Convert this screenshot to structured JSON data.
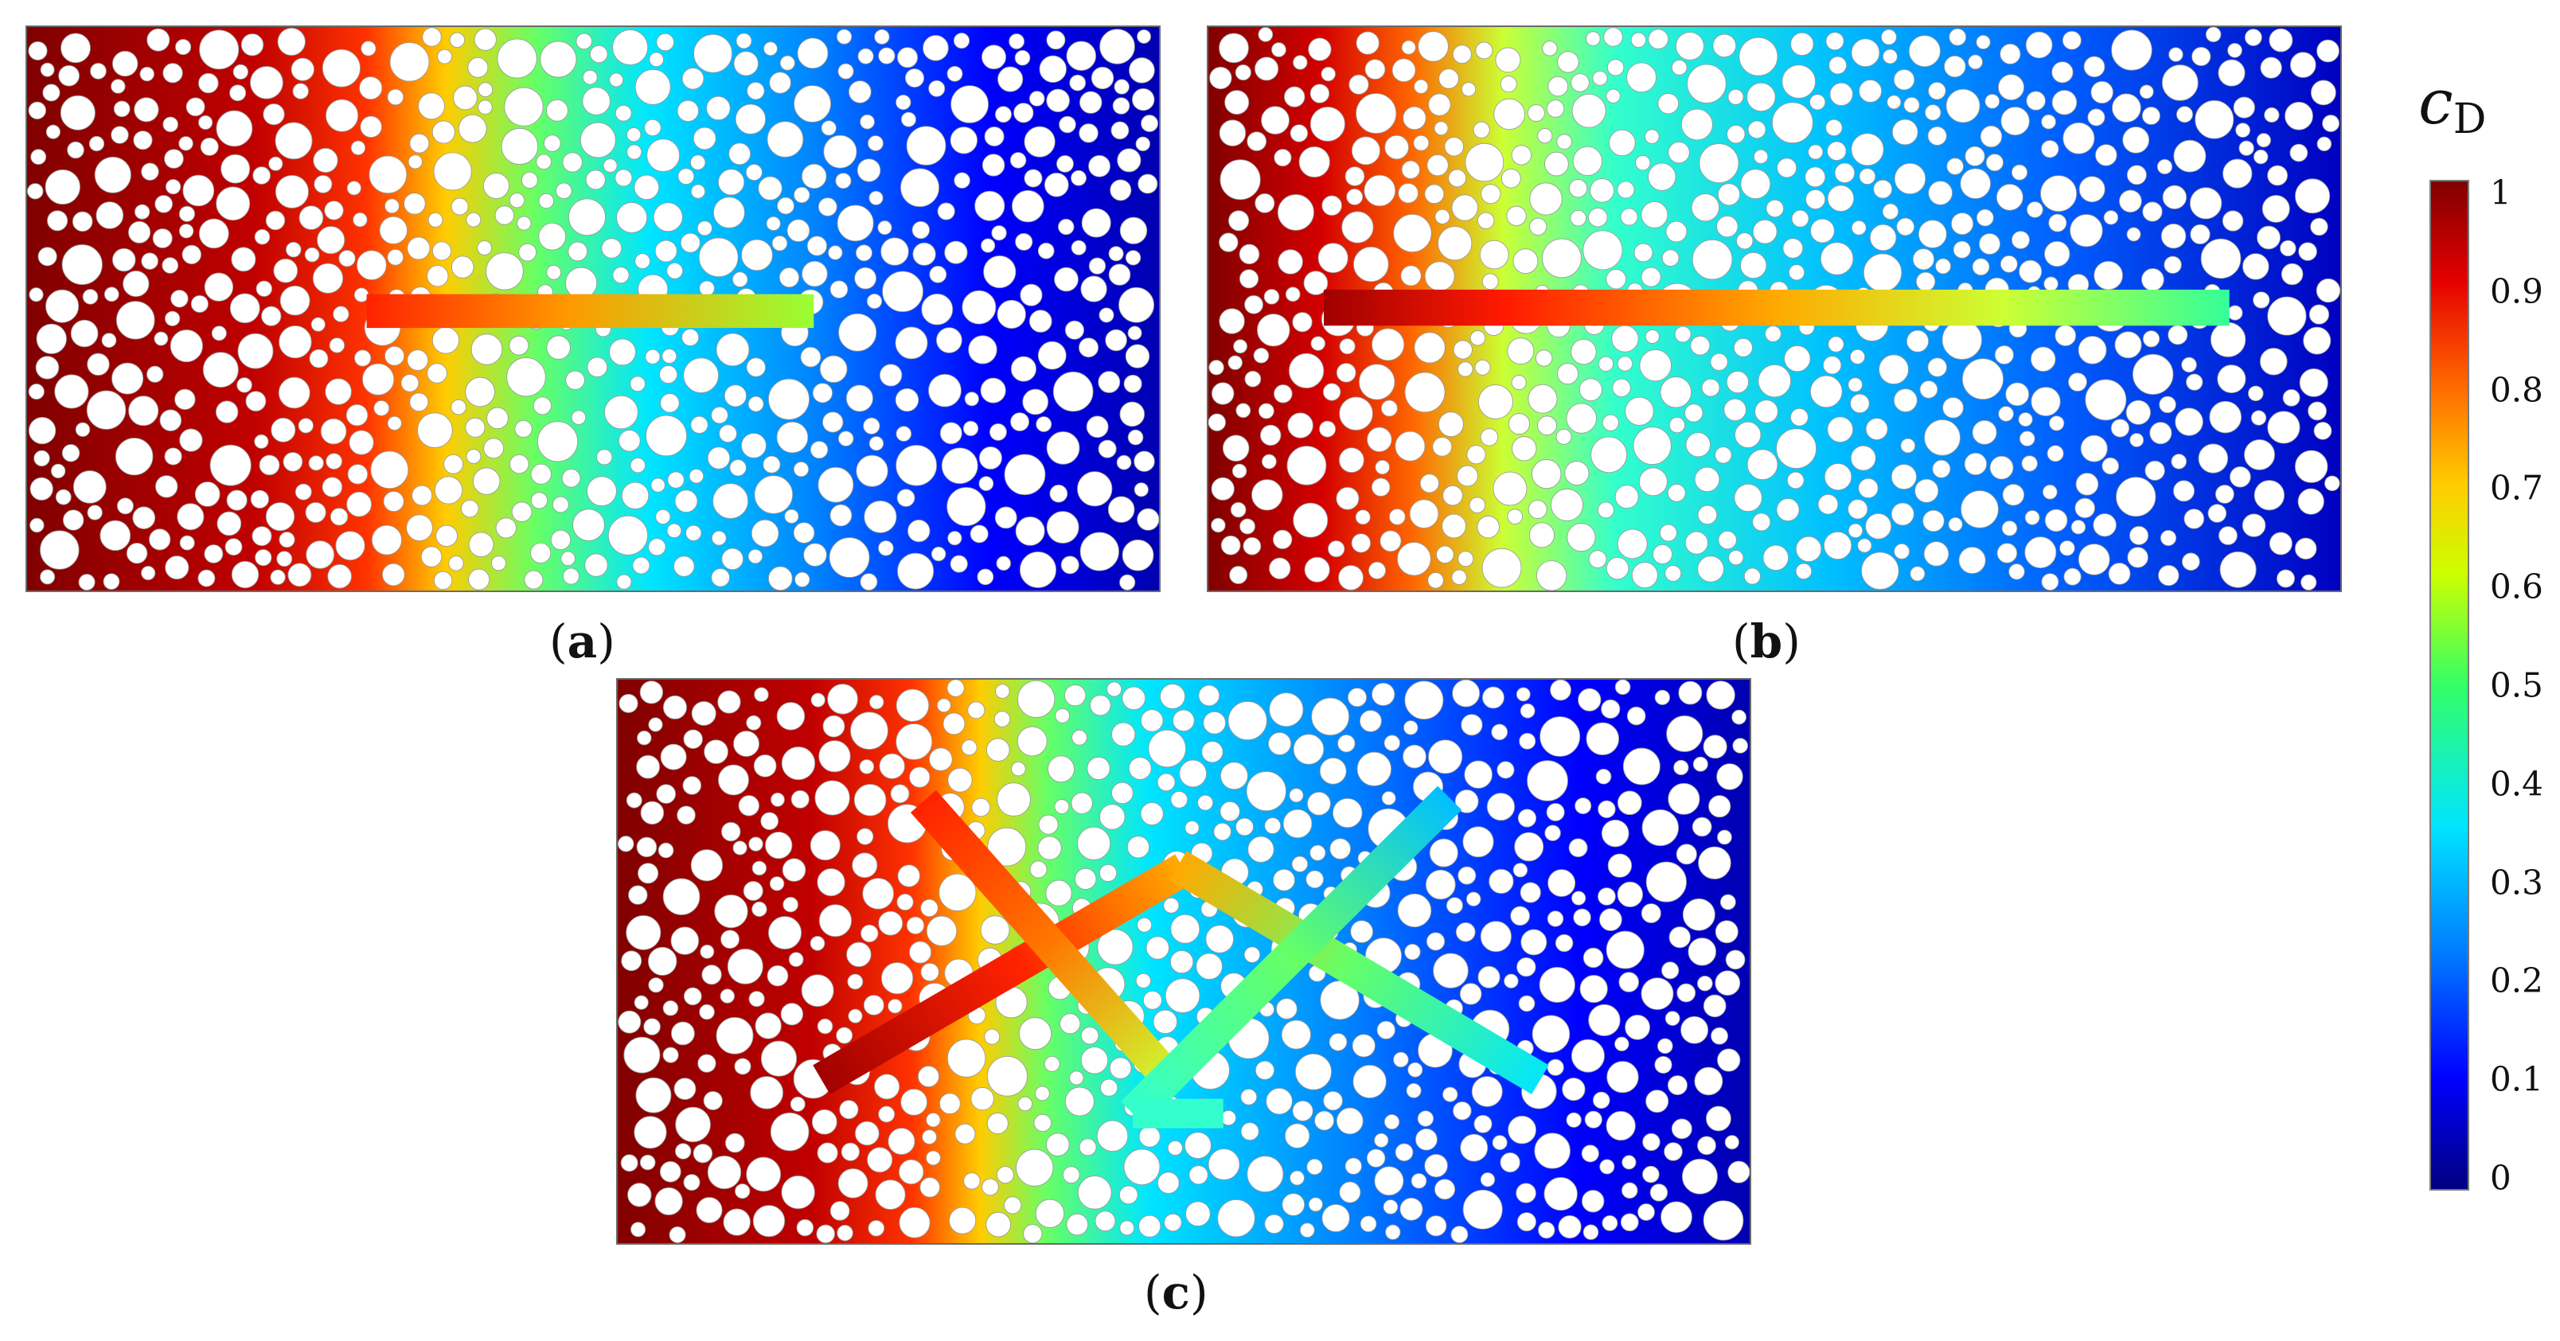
{
  "panels": [
    {
      "caption": "(a)",
      "letter": "a",
      "fracture": "single-short"
    },
    {
      "caption": "(b)",
      "letter": "b",
      "fracture": "single-long"
    },
    {
      "caption": "(c)",
      "letter": "c",
      "fracture": "network"
    }
  ],
  "colorbar": {
    "symbol": "c",
    "subscript": "D",
    "ticks": [
      "1",
      "0.9",
      "0.8",
      "0.7",
      "0.6",
      "0.5",
      "0.4",
      "0.3",
      "0.2",
      "0.1",
      "0"
    ],
    "colors": [
      "#00007f",
      "#0000ff",
      "#0080ff",
      "#00e5ff",
      "#33ff66",
      "#ccff00",
      "#ffcc00",
      "#ff6600",
      "#e60000",
      "#800000"
    ]
  }
}
